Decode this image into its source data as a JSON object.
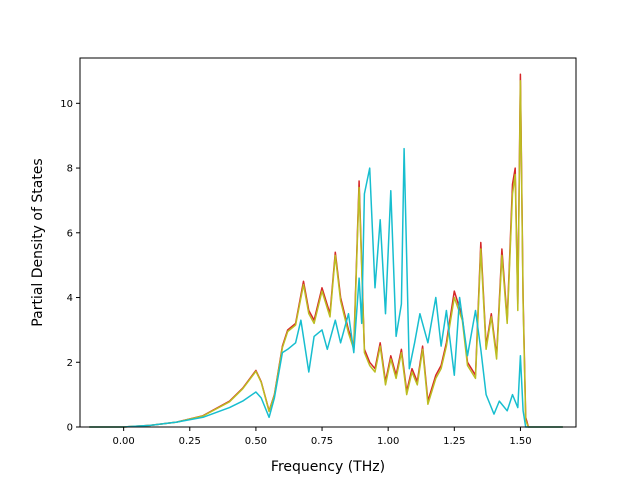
{
  "chart_data": {
    "type": "line",
    "title": "",
    "xlabel": "Frequency (THz)",
    "ylabel": "Partial Density of States",
    "xlim": [
      -0.165,
      1.71
    ],
    "ylim": [
      0,
      11.4
    ],
    "xticks": [
      0.0,
      0.25,
      0.5,
      0.75,
      1.0,
      1.25,
      1.5
    ],
    "xtick_labels": [
      "0.00",
      "0.25",
      "0.50",
      "0.75",
      "1.00",
      "1.25",
      "1.50"
    ],
    "yticks": [
      0,
      2,
      4,
      6,
      8,
      10
    ],
    "ytick_labels": [
      "0",
      "2",
      "4",
      "6",
      "8",
      "10"
    ],
    "grid": false,
    "legend": "none",
    "series": [
      {
        "color": "#d62728",
        "x": [
          -0.13,
          0.0,
          0.1,
          0.2,
          0.3,
          0.4,
          0.45,
          0.5,
          0.52,
          0.55,
          0.57,
          0.6,
          0.62,
          0.65,
          0.68,
          0.7,
          0.72,
          0.75,
          0.78,
          0.8,
          0.82,
          0.85,
          0.87,
          0.89,
          0.91,
          0.93,
          0.95,
          0.97,
          0.99,
          1.01,
          1.03,
          1.05,
          1.07,
          1.09,
          1.11,
          1.13,
          1.15,
          1.18,
          1.2,
          1.22,
          1.25,
          1.28,
          1.3,
          1.33,
          1.35,
          1.37,
          1.39,
          1.41,
          1.43,
          1.45,
          1.47,
          1.48,
          1.49,
          1.5,
          1.51,
          1.52,
          1.53,
          1.55,
          1.66
        ],
        "values": [
          0,
          0,
          0.05,
          0.15,
          0.35,
          0.8,
          1.2,
          1.75,
          1.4,
          0.5,
          1.0,
          2.5,
          3.0,
          3.2,
          4.5,
          3.6,
          3.3,
          4.3,
          3.5,
          5.4,
          4.0,
          3.0,
          2.5,
          7.6,
          2.4,
          2.0,
          1.8,
          2.6,
          1.4,
          2.2,
          1.6,
          2.4,
          1.1,
          1.8,
          1.4,
          2.5,
          0.8,
          1.6,
          1.9,
          2.6,
          4.2,
          3.4,
          2.0,
          1.6,
          5.7,
          2.5,
          3.5,
          2.2,
          5.5,
          3.3,
          7.5,
          8.0,
          3.8,
          10.9,
          4.0,
          0.3,
          0,
          0,
          0
        ]
      },
      {
        "color": "#bcbd22",
        "x": [
          -0.13,
          0.0,
          0.1,
          0.2,
          0.3,
          0.4,
          0.45,
          0.5,
          0.52,
          0.55,
          0.57,
          0.6,
          0.62,
          0.65,
          0.68,
          0.7,
          0.72,
          0.75,
          0.78,
          0.8,
          0.82,
          0.85,
          0.87,
          0.89,
          0.91,
          0.93,
          0.95,
          0.97,
          0.99,
          1.01,
          1.03,
          1.05,
          1.07,
          1.09,
          1.11,
          1.13,
          1.15,
          1.18,
          1.2,
          1.22,
          1.25,
          1.28,
          1.3,
          1.33,
          1.35,
          1.37,
          1.39,
          1.41,
          1.43,
          1.45,
          1.47,
          1.48,
          1.49,
          1.5,
          1.51,
          1.52,
          1.53,
          1.55,
          1.66
        ],
        "values": [
          0,
          0,
          0.05,
          0.15,
          0.34,
          0.78,
          1.18,
          1.72,
          1.38,
          0.48,
          0.98,
          2.45,
          2.95,
          3.15,
          4.4,
          3.5,
          3.2,
          4.2,
          3.4,
          5.3,
          3.9,
          2.9,
          2.4,
          7.4,
          2.3,
          1.9,
          1.7,
          2.5,
          1.3,
          2.1,
          1.5,
          2.3,
          1.0,
          1.7,
          1.3,
          2.4,
          0.7,
          1.5,
          1.8,
          2.5,
          4.0,
          3.3,
          1.9,
          1.5,
          5.5,
          2.4,
          3.4,
          2.1,
          5.3,
          3.2,
          7.2,
          7.8,
          3.6,
          10.7,
          3.8,
          0.2,
          0,
          0,
          0
        ]
      },
      {
        "color": "#17becf",
        "x": [
          -0.13,
          0.0,
          0.1,
          0.2,
          0.3,
          0.4,
          0.45,
          0.5,
          0.52,
          0.55,
          0.57,
          0.6,
          0.62,
          0.65,
          0.67,
          0.7,
          0.72,
          0.75,
          0.77,
          0.8,
          0.82,
          0.85,
          0.87,
          0.89,
          0.9,
          0.91,
          0.93,
          0.95,
          0.97,
          0.99,
          1.01,
          1.03,
          1.05,
          1.06,
          1.08,
          1.1,
          1.12,
          1.15,
          1.18,
          1.2,
          1.22,
          1.25,
          1.27,
          1.3,
          1.33,
          1.35,
          1.37,
          1.4,
          1.42,
          1.45,
          1.47,
          1.49,
          1.5,
          1.51,
          1.52,
          1.55,
          1.66
        ],
        "values": [
          0,
          0,
          0.05,
          0.15,
          0.3,
          0.6,
          0.8,
          1.08,
          0.9,
          0.3,
          0.9,
          2.3,
          2.4,
          2.6,
          3.3,
          1.7,
          2.8,
          3.0,
          2.4,
          3.3,
          2.6,
          3.5,
          2.3,
          4.6,
          3.2,
          7.2,
          8.0,
          4.3,
          6.4,
          3.5,
          7.3,
          2.8,
          3.8,
          8.6,
          1.8,
          2.6,
          3.5,
          2.6,
          4.0,
          2.5,
          3.6,
          1.6,
          4.0,
          2.2,
          3.6,
          2.4,
          1.0,
          0.4,
          0.8,
          0.5,
          1.0,
          0.6,
          2.2,
          0.5,
          0,
          0,
          0
        ]
      }
    ]
  }
}
